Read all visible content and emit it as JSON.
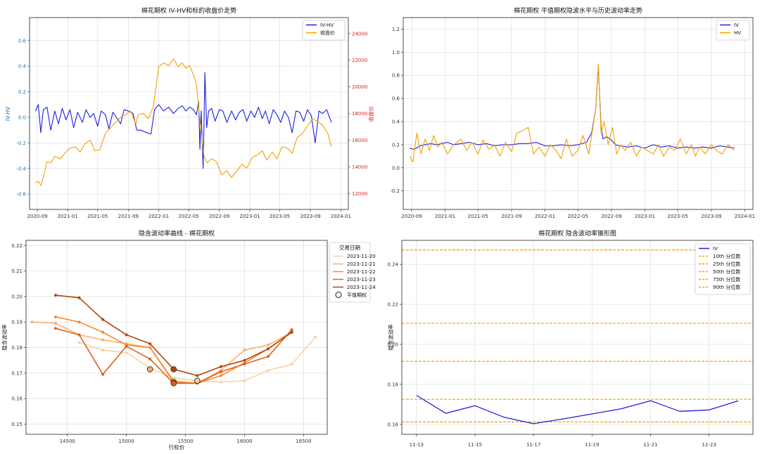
{
  "chart_data": [
    {
      "type": "line",
      "title": "棉花期权 IV-HV和标的收盘价走势",
      "xlabel": "",
      "ylabel": "IV-HV",
      "y2label": "收盘价",
      "xlim": [
        "2020-08-01",
        "2024-01-31"
      ],
      "ylim": [
        -0.72,
        0.78
      ],
      "y2lim": [
        10800,
        25200
      ],
      "xticks": [
        "2020-09",
        "2021-01",
        "2021-05",
        "2021-09",
        "2022-01",
        "2022-05",
        "2022-09",
        "2023-01",
        "2023-05",
        "2023-09",
        "2024-01"
      ],
      "yticks": [
        -0.6,
        -0.4,
        -0.2,
        0.0,
        0.2,
        0.4,
        0.6
      ],
      "ytick_labels": [
        "-0.6",
        "-0.4",
        "-0.2",
        "0.0",
        "0.2",
        "0.4",
        "0.6"
      ],
      "y2ticks": [
        12000,
        14000,
        16000,
        18000,
        20000,
        22000,
        24000
      ],
      "y2tick_labels": [
        "12000",
        "14000",
        "16000",
        "18000",
        "20000",
        "22000",
        "24000"
      ],
      "legend": [
        "IV-HV",
        "收盘价"
      ],
      "series": [
        {
          "name": "IV-HV",
          "axis": "left",
          "color": "#1f1fe0",
          "x": [
            "2020-08-25",
            "2020-09-05",
            "2020-09-15",
            "2020-09-25",
            "2020-10-10",
            "2020-10-25",
            "2020-11-10",
            "2020-11-25",
            "2020-12-10",
            "2020-12-25",
            "2021-01-10",
            "2021-01-25",
            "2021-02-10",
            "2021-03-01",
            "2021-03-15",
            "2021-04-01",
            "2021-04-15",
            "2021-05-01",
            "2021-05-15",
            "2021-06-01",
            "2021-06-15",
            "2021-07-01",
            "2021-07-15",
            "2021-08-01",
            "2021-08-15",
            "2021-09-01",
            "2021-09-20",
            "2021-10-05",
            "2021-10-20",
            "2021-11-15",
            "2021-12-01",
            "2021-12-15",
            "2022-01-01",
            "2022-01-20",
            "2022-02-10",
            "2022-03-01",
            "2022-03-20",
            "2022-04-05",
            "2022-04-20",
            "2022-05-05",
            "2022-05-20",
            "2022-06-01",
            "2022-06-10",
            "2022-06-15",
            "2022-06-20",
            "2022-06-28",
            "2022-07-05",
            "2022-07-12",
            "2022-07-20",
            "2022-08-01",
            "2022-08-15",
            "2022-09-01",
            "2022-09-15",
            "2022-10-01",
            "2022-10-20",
            "2022-11-05",
            "2022-11-20",
            "2022-12-05",
            "2022-12-20",
            "2023-01-05",
            "2023-01-20",
            "2023-02-05",
            "2023-02-20",
            "2023-03-05",
            "2023-03-20",
            "2023-04-05",
            "2023-04-20",
            "2023-05-05",
            "2023-05-20",
            "2023-06-05",
            "2023-06-20",
            "2023-07-05",
            "2023-07-20",
            "2023-08-05",
            "2023-08-20",
            "2023-09-05",
            "2023-09-20",
            "2023-10-05",
            "2023-10-20",
            "2023-11-05",
            "2023-11-24"
          ],
          "y": [
            0.05,
            0.1,
            -0.12,
            0.06,
            0.08,
            -0.1,
            0.05,
            -0.05,
            0.07,
            -0.02,
            0.06,
            -0.08,
            0.04,
            -0.04,
            0.06,
            0.0,
            0.03,
            -0.07,
            0.05,
            0.02,
            -0.09,
            0.04,
            0.0,
            -0.05,
            0.06,
            0.05,
            0.03,
            -0.1,
            -0.1,
            -0.12,
            -0.13,
            0.06,
            0.1,
            0.05,
            0.08,
            0.03,
            0.07,
            0.09,
            0.05,
            0.08,
            0.06,
            0.02,
            0.12,
            -0.25,
            0.05,
            -0.4,
            0.35,
            -0.08,
            0.05,
            0.07,
            -0.03,
            0.06,
            0.05,
            -0.04,
            0.05,
            -0.02,
            0.04,
            0.06,
            -0.03,
            0.05,
            0.0,
            0.08,
            -0.01,
            0.05,
            -0.05,
            0.06,
            0.02,
            -0.04,
            0.05,
            0.0,
            -0.12,
            0.05,
            0.04,
            -0.03,
            0.06,
            0.01,
            -0.2,
            0.05,
            0.03,
            0.06,
            -0.04
          ]
        },
        {
          "name": "收盘价",
          "axis": "right",
          "color": "#f5a000",
          "x": [
            "2020-08-25",
            "2020-09-05",
            "2020-09-15",
            "2020-09-25",
            "2020-10-10",
            "2020-10-25",
            "2020-11-10",
            "2020-12-01",
            "2020-12-20",
            "2021-01-10",
            "2021-02-01",
            "2021-02-20",
            "2021-03-10",
            "2021-04-01",
            "2021-04-20",
            "2021-05-10",
            "2021-06-01",
            "2021-06-20",
            "2021-07-10",
            "2021-08-01",
            "2021-08-20",
            "2021-09-10",
            "2021-10-01",
            "2021-10-10",
            "2021-11-01",
            "2021-11-20",
            "2021-12-10",
            "2022-01-01",
            "2022-01-20",
            "2022-02-10",
            "2022-03-01",
            "2022-03-20",
            "2022-04-05",
            "2022-04-20",
            "2022-05-05",
            "2022-05-20",
            "2022-06-01",
            "2022-06-15",
            "2022-07-01",
            "2022-07-15",
            "2022-08-01",
            "2022-08-20",
            "2022-09-10",
            "2022-10-01",
            "2022-10-20",
            "2022-11-10",
            "2022-12-01",
            "2022-12-20",
            "2023-01-10",
            "2023-02-01",
            "2023-02-20",
            "2023-03-10",
            "2023-04-01",
            "2023-04-20",
            "2023-05-10",
            "2023-06-01",
            "2023-06-20",
            "2023-07-10",
            "2023-08-01",
            "2023-08-20",
            "2023-09-10",
            "2023-10-01",
            "2023-10-20",
            "2023-11-10",
            "2023-11-24"
          ],
          "y": [
            12800,
            12900,
            12600,
            13200,
            14400,
            14300,
            14800,
            14600,
            15000,
            15400,
            15500,
            15100,
            15700,
            16000,
            15200,
            15300,
            16500,
            16900,
            17300,
            17700,
            17900,
            18200,
            17200,
            17900,
            18000,
            17600,
            18500,
            21500,
            21800,
            21600,
            22100,
            21500,
            21800,
            21400,
            21600,
            20900,
            20200,
            17500,
            14800,
            14300,
            14600,
            14400,
            13400,
            13700,
            13200,
            13700,
            14200,
            13900,
            14700,
            14900,
            15200,
            14500,
            15100,
            14600,
            15500,
            15400,
            15000,
            16200,
            16500,
            17100,
            17600,
            17400,
            17100,
            16500,
            15500
          ]
        }
      ]
    },
    {
      "type": "line",
      "title": "棉花期权 平值期权隐波水平与历史波动率走势",
      "xlabel": "",
      "ylabel": "",
      "xlim": [
        "2020-08-01",
        "2024-01-31"
      ],
      "ylim": [
        -0.36,
        1.3
      ],
      "xticks": [
        "2020-09",
        "2021-01",
        "2021-05",
        "2021-09",
        "2022-01",
        "2022-05",
        "2022-09",
        "2023-01",
        "2023-05",
        "2023-09",
        "2024-01"
      ],
      "yticks": [
        -0.2,
        0.0,
        0.2,
        0.4,
        0.6,
        0.8,
        1.0,
        1.2
      ],
      "ytick_labels": [
        "-0.2",
        "0.0",
        "0.2",
        "0.4",
        "0.6",
        "0.8",
        "1.0",
        "1.2"
      ],
      "legend": [
        "IV",
        "HV"
      ],
      "series": [
        {
          "name": "IV",
          "color": "#1f1fe0",
          "x": [
            "2020-08-25",
            "2020-09-10",
            "2020-10-01",
            "2020-10-20",
            "2020-11-10",
            "2020-12-01",
            "2020-12-20",
            "2021-01-10",
            "2021-02-01",
            "2021-03-01",
            "2021-04-01",
            "2021-05-01",
            "2021-06-01",
            "2021-07-01",
            "2021-08-01",
            "2021-09-01",
            "2021-10-01",
            "2021-11-01",
            "2021-12-01",
            "2022-01-01",
            "2022-02-01",
            "2022-03-01",
            "2022-04-01",
            "2022-05-01",
            "2022-06-01",
            "2022-06-20",
            "2022-07-05",
            "2022-07-15",
            "2022-07-25",
            "2022-08-01",
            "2022-08-15",
            "2022-09-01",
            "2022-09-15",
            "2022-10-01",
            "2022-11-01",
            "2022-12-01",
            "2023-01-01",
            "2023-02-01",
            "2023-03-01",
            "2023-04-01",
            "2023-05-01",
            "2023-06-01",
            "2023-07-01",
            "2023-08-01",
            "2023-09-01",
            "2023-10-01",
            "2023-11-01",
            "2023-11-24"
          ],
          "y": [
            0.17,
            0.16,
            0.19,
            0.2,
            0.21,
            0.2,
            0.21,
            0.22,
            0.2,
            0.21,
            0.22,
            0.2,
            0.21,
            0.19,
            0.2,
            0.2,
            0.21,
            0.21,
            0.22,
            0.19,
            0.19,
            0.2,
            0.19,
            0.2,
            0.22,
            0.3,
            0.5,
            0.88,
            0.35,
            0.25,
            0.27,
            0.24,
            0.2,
            0.19,
            0.18,
            0.19,
            0.17,
            0.2,
            0.18,
            0.19,
            0.17,
            0.18,
            0.17,
            0.18,
            0.17,
            0.19,
            0.18,
            0.17
          ]
        },
        {
          "name": "HV",
          "color": "#f5a000",
          "x": [
            "2020-08-25",
            "2020-09-05",
            "2020-09-20",
            "2020-10-05",
            "2020-10-20",
            "2020-11-05",
            "2020-11-20",
            "2020-12-05",
            "2020-12-20",
            "2021-01-10",
            "2021-02-01",
            "2021-03-01",
            "2021-03-20",
            "2021-04-10",
            "2021-05-01",
            "2021-05-20",
            "2021-06-10",
            "2021-07-01",
            "2021-07-20",
            "2021-08-10",
            "2021-09-01",
            "2021-09-20",
            "2021-10-10",
            "2021-11-01",
            "2021-11-20",
            "2021-12-10",
            "2022-01-01",
            "2022-01-20",
            "2022-02-10",
            "2022-03-01",
            "2022-03-20",
            "2022-04-10",
            "2022-05-01",
            "2022-05-20",
            "2022-06-10",
            "2022-06-25",
            "2022-07-05",
            "2022-07-15",
            "2022-07-25",
            "2022-08-05",
            "2022-08-20",
            "2022-09-05",
            "2022-09-20",
            "2022-10-05",
            "2022-10-20",
            "2022-11-10",
            "2022-12-01",
            "2022-12-20",
            "2023-01-10",
            "2023-02-01",
            "2023-02-20",
            "2023-03-10",
            "2023-04-01",
            "2023-04-20",
            "2023-05-10",
            "2023-06-01",
            "2023-06-20",
            "2023-07-05",
            "2023-07-20",
            "2023-08-10",
            "2023-09-01",
            "2023-09-20",
            "2023-10-10",
            "2023-11-01",
            "2023-11-24"
          ],
          "y": [
            0.1,
            0.05,
            0.3,
            0.12,
            0.25,
            0.15,
            0.28,
            0.18,
            0.22,
            0.12,
            0.2,
            0.25,
            0.15,
            0.22,
            0.12,
            0.24,
            0.16,
            0.2,
            0.1,
            0.22,
            0.14,
            0.3,
            0.32,
            0.35,
            0.12,
            0.18,
            0.1,
            0.2,
            0.15,
            0.08,
            0.25,
            0.1,
            0.15,
            0.28,
            0.12,
            0.35,
            0.5,
            0.9,
            0.3,
            0.4,
            0.2,
            0.35,
            0.12,
            0.2,
            0.15,
            0.22,
            0.1,
            0.18,
            0.15,
            0.12,
            0.2,
            0.1,
            0.18,
            0.15,
            0.25,
            0.12,
            0.2,
            0.1,
            0.18,
            0.12,
            0.2,
            0.15,
            0.12,
            0.2,
            0.15
          ]
        }
      ]
    },
    {
      "type": "line",
      "title": "隐含波动率曲线 - 棉花期权",
      "xlabel": "行权价",
      "ylabel": "隐含波动率",
      "xlim": [
        14150,
        16700
      ],
      "ylim": [
        0.146,
        0.222
      ],
      "xticks": [
        14500,
        15000,
        15500,
        16000,
        16500
      ],
      "xtick_labels": [
        "14500",
        "15000",
        "15500",
        "16000",
        "16500"
      ],
      "yticks": [
        0.15,
        0.16,
        0.17,
        0.18,
        0.19,
        0.2,
        0.21,
        0.22
      ],
      "ytick_labels": [
        "0.15",
        "0.16",
        "0.17",
        "0.18",
        "0.19",
        "0.20",
        "0.21",
        "0.22"
      ],
      "legend_title": "交易日期",
      "legend_marker_label": "平值期权",
      "series": [
        {
          "name": "2023-11-20",
          "color": "#fdd0a2",
          "x": [
            14600,
            14800,
            15000,
            15200,
            15400,
            15600,
            15800,
            16000,
            16200,
            16400,
            16600
          ],
          "y": [
            0.182,
            0.179,
            0.178,
            0.172,
            0.168,
            0.167,
            0.1665,
            0.167,
            0.171,
            0.1735,
            0.184
          ],
          "atm": {
            "x": 15600,
            "y": 0.167
          }
        },
        {
          "name": "2023-11-21",
          "color": "#fdae6b",
          "x": [
            14200,
            14400,
            14600,
            14800,
            15000,
            15200,
            15400,
            15600,
            15800,
            16000,
            16200,
            16400
          ],
          "y": [
            0.19,
            0.1895,
            0.185,
            0.183,
            0.1815,
            0.18,
            0.167,
            0.166,
            0.171,
            0.179,
            0.181,
            0.186
          ],
          "atm": {
            "x": 15200,
            "y": 0.1715
          }
        },
        {
          "name": "2023-11-22",
          "color": "#f4892f",
          "x": [
            14400,
            14600,
            14800,
            15000,
            15200,
            15400,
            15600,
            15800,
            16000,
            16200,
            16400
          ],
          "y": [
            0.192,
            0.19,
            0.186,
            0.181,
            0.18,
            0.1665,
            0.166,
            0.169,
            0.174,
            0.1795,
            0.186
          ],
          "atm": {
            "x": 15400,
            "y": 0.1665
          }
        },
        {
          "name": "2023-11-23",
          "color": "#e0611a",
          "x": [
            14400,
            14600,
            14800,
            15000,
            15200,
            15400,
            15600,
            15800,
            16000,
            16200,
            16400
          ],
          "y": [
            0.1875,
            0.185,
            0.1695,
            0.1805,
            0.1755,
            0.166,
            0.166,
            0.1705,
            0.1735,
            0.1765,
            0.187
          ],
          "atm": {
            "x": 15400,
            "y": 0.166
          }
        },
        {
          "name": "2023-11-24",
          "color": "#b5450f",
          "x": [
            14400,
            14600,
            14800,
            15000,
            15200,
            15400,
            15600,
            15800,
            16000,
            16200,
            16400
          ],
          "y": [
            0.2005,
            0.1995,
            0.191,
            0.185,
            0.1815,
            0.1715,
            0.169,
            0.1725,
            0.175,
            0.1795,
            0.186
          ],
          "atm": {
            "x": 15400,
            "y": 0.1715
          }
        }
      ]
    },
    {
      "type": "line",
      "title": "棉花期权 隐含波动率锥形图",
      "xlabel": "",
      "ylabel": "隐含波动率",
      "xlim": [
        -0.5,
        11.5
      ],
      "ylim": [
        0.155,
        0.252
      ],
      "categories": [
        "11-13",
        "11-14",
        "11-15",
        "11-16",
        "11-17",
        "11-18",
        "11-19",
        "11-20",
        "11-21",
        "11-22",
        "11-23",
        "11-24"
      ],
      "xticks": [
        0,
        2,
        4,
        6,
        8,
        10
      ],
      "xtick_labels": [
        "11-13",
        "11-15",
        "11-17",
        "11-19",
        "11-21",
        "11-23"
      ],
      "yticks": [
        0.16,
        0.18,
        0.2,
        0.22,
        0.24
      ],
      "ytick_labels": [
        "0.16",
        "0.18",
        "0.20",
        "0.22",
        "0.24"
      ],
      "series": [
        {
          "name": "IV",
          "color": "#1f1fe0",
          "values": [
            0.1745,
            0.1655,
            0.1693,
            0.1635,
            0.1603,
            0.1627,
            0.1652,
            0.1678,
            0.1718,
            0.1665,
            0.1672,
            0.1718
          ]
        }
      ],
      "percentiles": [
        {
          "name": "10th 分位数",
          "value": 0.1612,
          "color": "#f5a000"
        },
        {
          "name": "25th 分位数",
          "value": 0.1725,
          "color": "#f5a000"
        },
        {
          "name": "50th 分位数",
          "value": 0.1915,
          "color": "#f5a000"
        },
        {
          "name": "75th 分位数",
          "value": 0.2105,
          "color": "#f5a000"
        },
        {
          "name": "90th 分位数",
          "value": 0.2472,
          "color": "#f5a000"
        }
      ]
    }
  ]
}
